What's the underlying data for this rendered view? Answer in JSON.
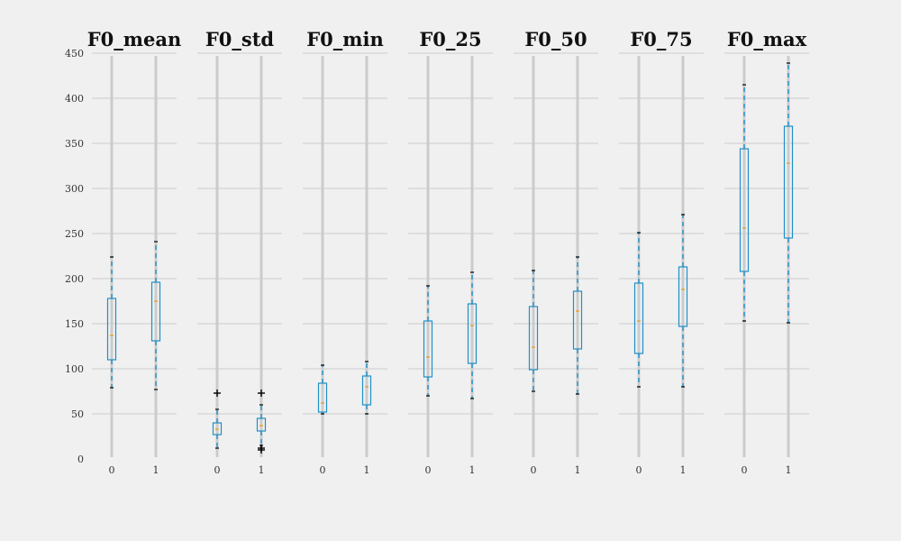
{
  "chart_data": {
    "type": "box",
    "grid": true,
    "ylim": [
      0,
      450
    ],
    "yticks": [
      "0",
      "50",
      "100",
      "150",
      "200",
      "250",
      "300",
      "350",
      "400",
      "450"
    ],
    "categories": [
      "0",
      "1"
    ],
    "colors": {
      "background": "#f0f0f0",
      "grid": "#cbcbcb",
      "box": "#1f8fc8",
      "median": "#e8a33d",
      "flier": "#000000"
    },
    "panels": [
      {
        "title": "F0_mean",
        "boxes": [
          {
            "category": "0",
            "whislo": 79,
            "q1": 110,
            "med": 137,
            "q3": 178,
            "whishi": 224,
            "fliers": []
          },
          {
            "category": "1",
            "whislo": 77,
            "q1": 131,
            "med": 175,
            "q3": 196,
            "whishi": 241,
            "fliers": []
          }
        ]
      },
      {
        "title": "F0_std",
        "boxes": [
          {
            "category": "0",
            "whislo": 12,
            "q1": 27,
            "med": 33,
            "q3": 40,
            "whishi": 55,
            "fliers": [
              73
            ]
          },
          {
            "category": "1",
            "whislo": 15,
            "q1": 31,
            "med": 37,
            "q3": 45,
            "whishi": 60,
            "fliers": [
              73,
              12,
              10
            ]
          }
        ]
      },
      {
        "title": "F0_min",
        "boxes": [
          {
            "category": "0",
            "whislo": 50,
            "q1": 52,
            "med": 62,
            "q3": 84,
            "whishi": 104,
            "fliers": []
          },
          {
            "category": "1",
            "whislo": 50,
            "q1": 60,
            "med": 80,
            "q3": 92,
            "whishi": 108,
            "fliers": []
          }
        ]
      },
      {
        "title": "F0_25",
        "boxes": [
          {
            "category": "0",
            "whislo": 70,
            "q1": 91,
            "med": 113,
            "q3": 153,
            "whishi": 192,
            "fliers": []
          },
          {
            "category": "1",
            "whislo": 67,
            "q1": 106,
            "med": 148,
            "q3": 172,
            "whishi": 207,
            "fliers": []
          }
        ]
      },
      {
        "title": "F0_50",
        "boxes": [
          {
            "category": "0",
            "whislo": 75,
            "q1": 99,
            "med": 124,
            "q3": 169,
            "whishi": 209,
            "fliers": []
          },
          {
            "category": "1",
            "whislo": 72,
            "q1": 122,
            "med": 164,
            "q3": 186,
            "whishi": 224,
            "fliers": []
          }
        ]
      },
      {
        "title": "F0_75",
        "boxes": [
          {
            "category": "0",
            "whislo": 80,
            "q1": 117,
            "med": 153,
            "q3": 195,
            "whishi": 251,
            "fliers": []
          },
          {
            "category": "1",
            "whislo": 80,
            "q1": 147,
            "med": 188,
            "q3": 213,
            "whishi": 271,
            "fliers": []
          }
        ]
      },
      {
        "title": "F0_max",
        "boxes": [
          {
            "category": "0",
            "whislo": 153,
            "q1": 208,
            "med": 256,
            "q3": 344,
            "whishi": 415,
            "fliers": []
          },
          {
            "category": "1",
            "whislo": 151,
            "q1": 245,
            "med": 328,
            "q3": 369,
            "whishi": 439,
            "fliers": []
          }
        ]
      }
    ]
  }
}
